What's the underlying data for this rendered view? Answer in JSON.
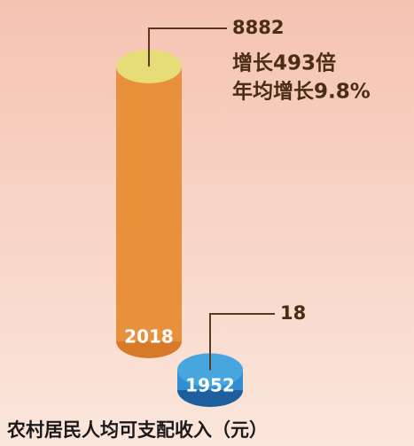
{
  "chart_data": {
    "type": "bar",
    "title": "农村居民人均可支配收入（元）",
    "categories": [
      "2018",
      "1952"
    ],
    "values": [
      8882,
      18
    ],
    "colors": [
      "#e8903c",
      "#2e8fd2"
    ],
    "annotations": [
      "增长493倍",
      "年均增长9.8%"
    ]
  }
}
